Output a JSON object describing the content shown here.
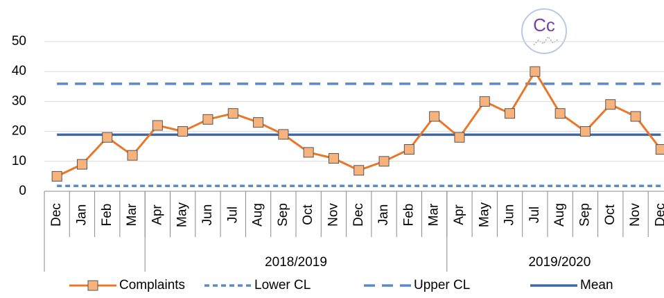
{
  "chart_data": {
    "type": "line",
    "logo": "Cc",
    "categories": [
      "Dec",
      "Jan",
      "Feb",
      "Mar",
      "Apr",
      "May",
      "Jun",
      "Jul",
      "Aug",
      "Sep",
      "Oct",
      "Nov",
      "Dec",
      "Jan",
      "Feb",
      "Mar",
      "Apr",
      "May",
      "Jun",
      "Jul",
      "Aug",
      "Sep",
      "Oct",
      "Nov",
      "Dec"
    ],
    "x_groups": [
      {
        "label": null,
        "span": 4
      },
      {
        "label": "2018/2019",
        "span": 12
      },
      {
        "label": "2019/2020",
        "span": 9
      }
    ],
    "series": [
      {
        "name": "Complaints",
        "color": "#e8772a",
        "marker": "square",
        "marker_color": "#f8b27c",
        "values": [
          5,
          9,
          18,
          12,
          22,
          20,
          24,
          26,
          23,
          19,
          13,
          11,
          7,
          10,
          14,
          25,
          18,
          30,
          26,
          40,
          26,
          20,
          29,
          25,
          14
        ]
      },
      {
        "name": "Lower CL",
        "color": "#5b8ac6",
        "dash": "short",
        "values": [
          1.8,
          1.8,
          1.8,
          1.8,
          1.8,
          1.8,
          1.8,
          1.8,
          1.8,
          1.8,
          1.8,
          1.8,
          1.8,
          1.8,
          1.8,
          1.8,
          1.8,
          1.8,
          1.8,
          1.8,
          1.8,
          1.8,
          1.8,
          1.8,
          1.8
        ]
      },
      {
        "name": "Upper CL",
        "color": "#5b8ac6",
        "dash": "long",
        "values": [
          35.9,
          35.9,
          35.9,
          35.9,
          35.9,
          35.9,
          35.9,
          35.9,
          35.9,
          35.9,
          35.9,
          35.9,
          35.9,
          35.9,
          35.9,
          35.9,
          35.9,
          35.9,
          35.9,
          35.9,
          35.9,
          35.9,
          35.9,
          35.9,
          35.9
        ]
      },
      {
        "name": "Mean",
        "color": "#41699f",
        "values": [
          18.9,
          18.9,
          18.9,
          18.9,
          18.9,
          18.9,
          18.9,
          18.9,
          18.9,
          18.9,
          18.9,
          18.9,
          18.9,
          18.9,
          18.9,
          18.9,
          18.9,
          18.9,
          18.9,
          18.9,
          18.9,
          18.9,
          18.9,
          18.9,
          18.9
        ]
      }
    ],
    "ylim": [
      0,
      50
    ],
    "yticks": [
      0,
      10,
      20,
      30,
      40,
      50
    ],
    "grid": true,
    "legend": "bottom"
  }
}
